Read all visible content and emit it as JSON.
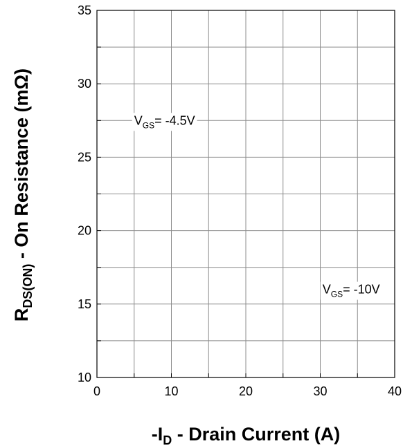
{
  "chart_data": {
    "type": "line",
    "title": "",
    "x_axis": {
      "label_main": "-I",
      "label_sub": "D",
      "label_rest": " - Drain Current (A)",
      "min": 0,
      "max": 40,
      "major_step": 10,
      "minor_step": 5,
      "ticks": [
        "0",
        "10",
        "20",
        "30",
        "40"
      ]
    },
    "y_axis": {
      "label_main": "R",
      "label_sub": "DS(ON)",
      "label_rest": " - On Resistance (mΩ)",
      "min": 10,
      "max": 35,
      "major_step": 5,
      "minor_step": 2.5,
      "ticks": [
        "10",
        "15",
        "20",
        "25",
        "30",
        "35"
      ]
    },
    "grid": true,
    "series": [],
    "annotations": [
      {
        "main": "V",
        "sub": "GS",
        "rest": "= -4.5V",
        "x": 5,
        "y": 27.5
      },
      {
        "main": "V",
        "sub": "GS",
        "rest": "= -10V",
        "x": 30.3,
        "y": 16
      }
    ]
  }
}
